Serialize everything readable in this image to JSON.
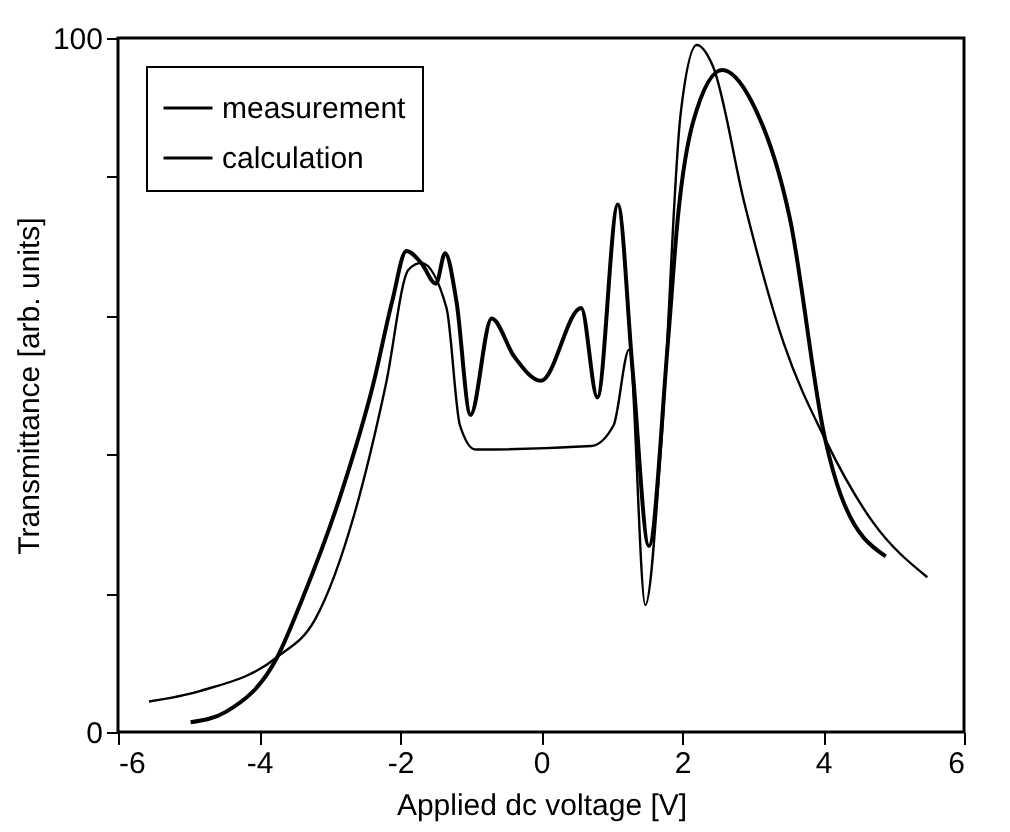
{
  "chart_data": {
    "type": "line",
    "xlabel": "Applied dc voltage [V]",
    "ylabel": "Transmittance  [arb. units]",
    "xlim": [
      -6,
      6
    ],
    "xticks": [
      -6,
      -4,
      -2,
      0,
      2,
      4,
      6
    ],
    "ylim": [
      0,
      100
    ],
    "yticks": [
      0,
      {
        "value": 20,
        "label": null
      },
      {
        "value": 40,
        "label": null
      },
      {
        "value": 60,
        "label": null
      },
      {
        "value": 80,
        "label": null
      },
      100
    ],
    "grid": false,
    "legend": "top left",
    "series": [
      {
        "name": "measurement",
        "color": "#000000",
        "x": [
          -4.97,
          -4.47,
          -3.74,
          -3.38,
          -2.84,
          -2.38,
          -2.11,
          -1.91,
          -1.7,
          -1.49,
          -1.36,
          -1.2,
          -1.0,
          -0.7,
          -0.38,
          0.0,
          0.57,
          0.8,
          1.09,
          1.3,
          1.53,
          1.8,
          1.94,
          2.16,
          2.57,
          2.98,
          3.53,
          4.03,
          4.25,
          4.89
        ],
        "values": [
          1.4,
          2.9,
          10.8,
          19.3,
          34.2,
          50.1,
          62.1,
          69.3,
          67.6,
          64.6,
          69.0,
          62.1,
          45.7,
          59.6,
          54.1,
          50.6,
          61.1,
          48.2,
          76,
          52.1,
          26.8,
          56.1,
          74,
          88,
          95.4,
          91,
          74,
          42.2,
          34.2,
          25.3
        ]
      },
      {
        "name": "calculation",
        "color": "#000000",
        "x": [
          -5.56,
          -4.84,
          -3.74,
          -3.2,
          -2.65,
          -2.2,
          -1.88,
          -1.7,
          -1.34,
          -1.15,
          -0.93,
          0.71,
          1.03,
          1.25,
          1.48,
          1.71,
          1.98,
          2.21,
          2.44,
          2.89,
          3.44,
          4.03,
          4.71,
          5.48
        ],
        "values": [
          4.4,
          5.9,
          10.8,
          16.3,
          31.3,
          50.1,
          66.6,
          67.6,
          61.1,
          44.2,
          40.7,
          41.2,
          44.2,
          55.1,
          18.3,
          42.2,
          89,
          99,
          95.9,
          76,
          56.1,
          42.2,
          30.2,
          22.3
        ]
      }
    ]
  }
}
